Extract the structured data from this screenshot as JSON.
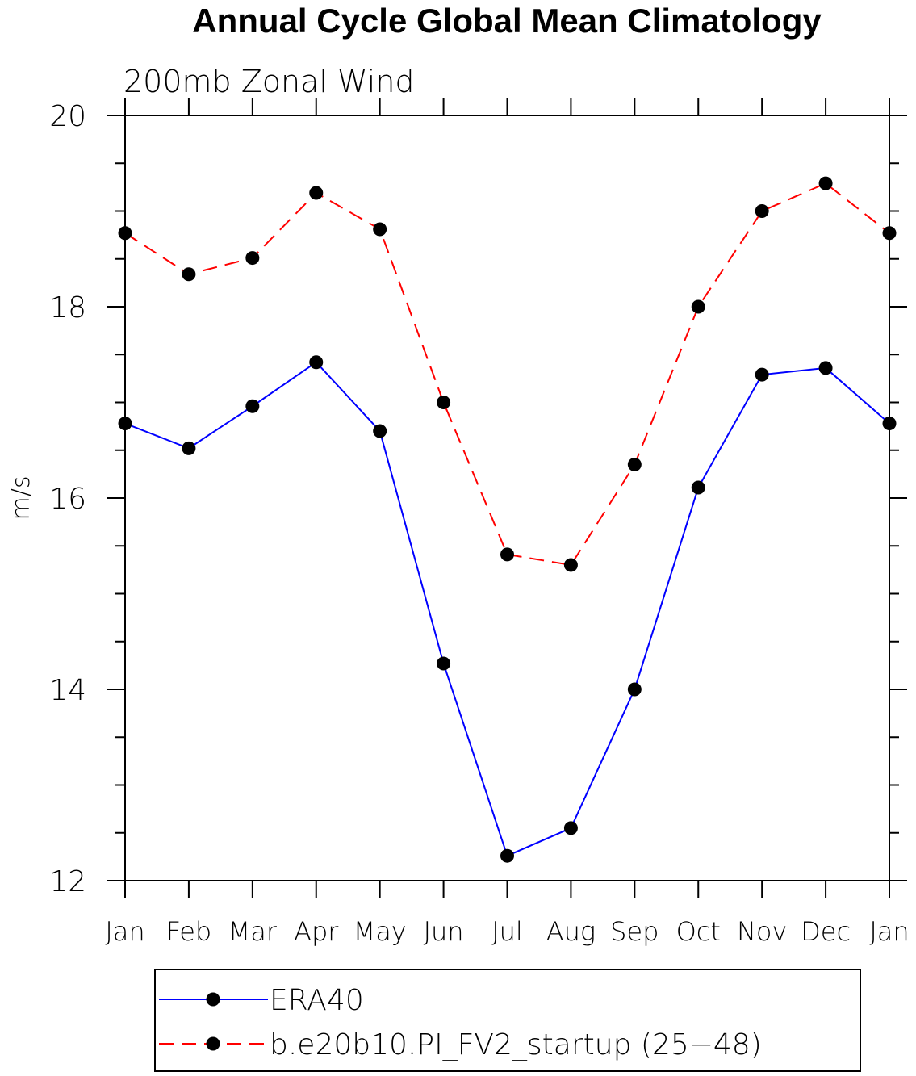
{
  "chart_data": {
    "type": "line",
    "title": "Annual Cycle Global Mean Climatology",
    "subtitle": "200mb Zonal Wind",
    "xlabel": "",
    "ylabel": "m/s",
    "categories": [
      "Jan",
      "Feb",
      "Mar",
      "Apr",
      "May",
      "Jun",
      "Jul",
      "Aug",
      "Sep",
      "Oct",
      "Nov",
      "Dec",
      "Jan"
    ],
    "ylim": [
      12,
      20
    ],
    "yticks": [
      12,
      14,
      16,
      18,
      20
    ],
    "yminor_step": 0.5,
    "grid": false,
    "legend_position": "bottom",
    "series": [
      {
        "name": "ERA40",
        "color": "#0000ff",
        "dash": "solid",
        "marker": "filled-circle",
        "values": [
          16.78,
          16.52,
          16.96,
          17.42,
          16.7,
          14.27,
          12.26,
          12.55,
          14.0,
          16.11,
          17.29,
          17.36,
          16.78
        ]
      },
      {
        "name": "b.e20b10.PI_FV2_startup (25−48)",
        "color": "#ff0000",
        "dash": "dashed",
        "marker": "filled-circle",
        "values": [
          18.77,
          18.34,
          18.51,
          19.19,
          18.81,
          17.0,
          15.41,
          15.3,
          16.35,
          18.0,
          19.0,
          19.29,
          18.77
        ]
      }
    ]
  }
}
